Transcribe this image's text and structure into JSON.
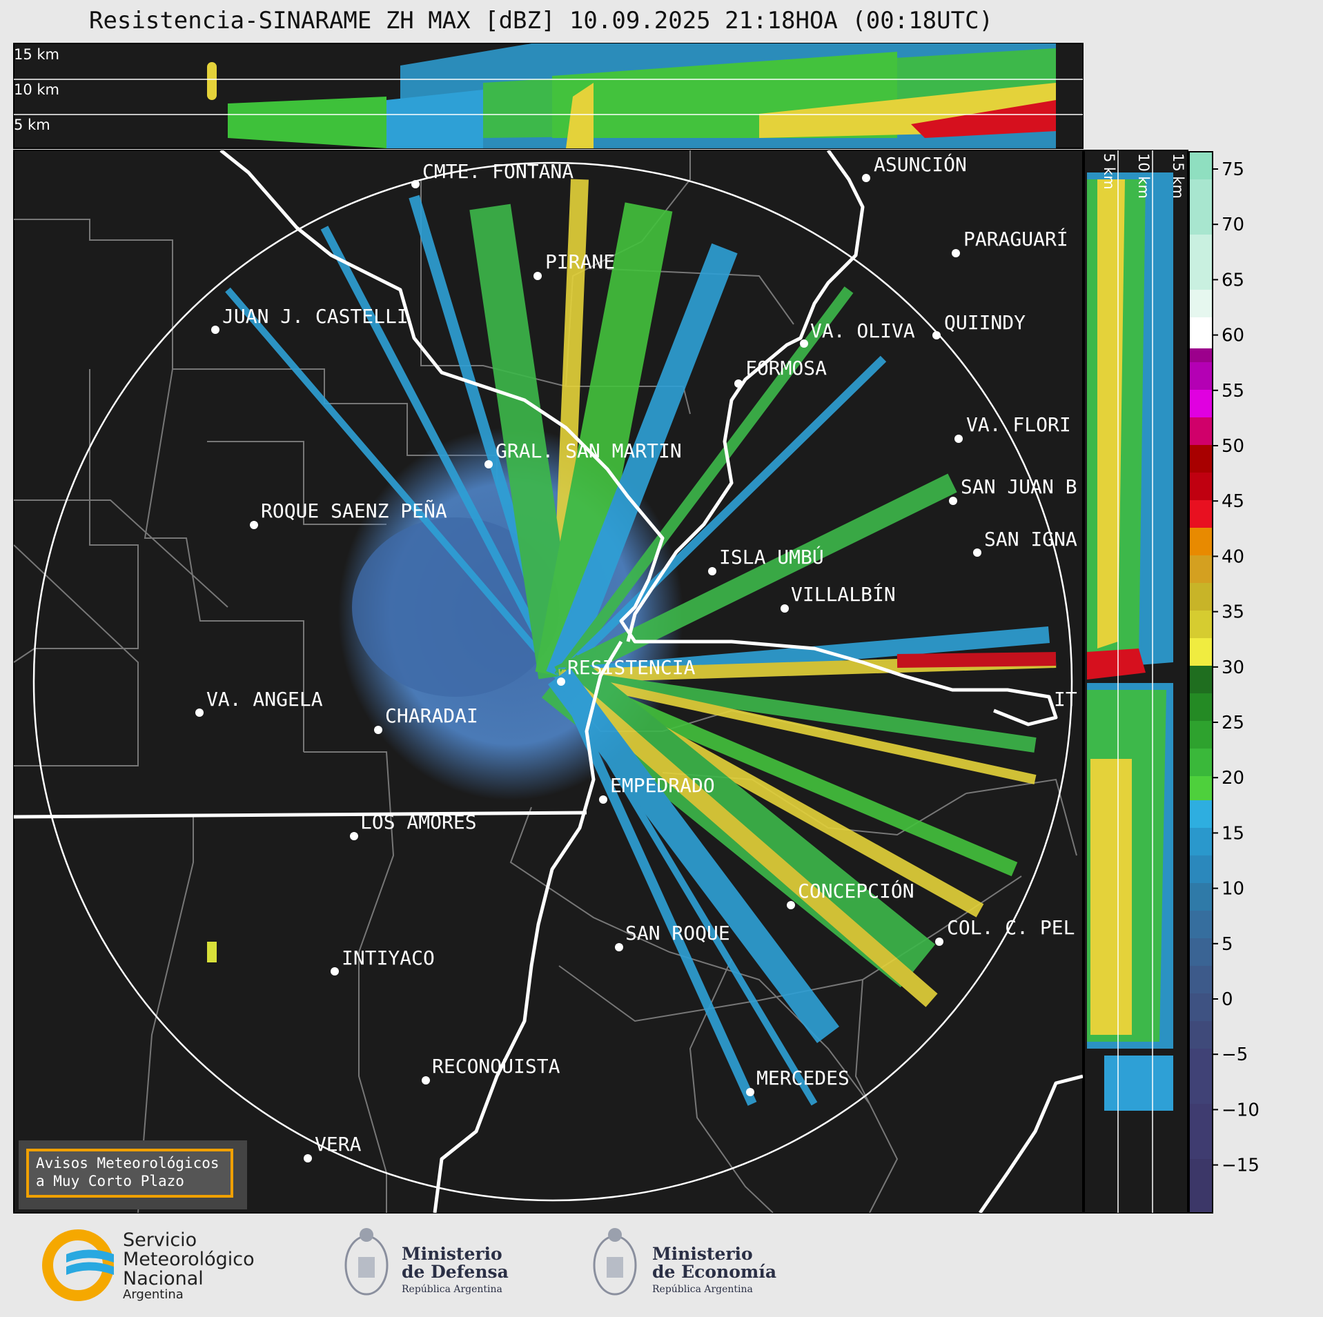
{
  "title": "Resistencia-SINARAME ZH MAX [dBZ] 10.09.2025 21:18HOA (00:18UTC)",
  "top_panel": {
    "altitude_labels": [
      "15 km",
      "10 km",
      "5 km"
    ]
  },
  "side_panel": {
    "altitude_labels": [
      "5 km",
      "10 km",
      "15 km"
    ]
  },
  "colorbar": {
    "unit": "dBZ",
    "ticks": [
      "75",
      "70",
      "65",
      "60",
      "55",
      "50",
      "45",
      "40",
      "35",
      "30",
      "25",
      "20",
      "15",
      "10",
      "5",
      "0",
      "−5",
      "−10",
      "−15"
    ]
  },
  "cities": [
    {
      "name": "CMTE. FONTANA"
    },
    {
      "name": "ASUNCIÓN"
    },
    {
      "name": "PARAGUARÍ"
    },
    {
      "name": "PIRANE"
    },
    {
      "name": "JUAN J. CASTELLI"
    },
    {
      "name": "VA. OLIVA"
    },
    {
      "name": "QUIINDY"
    },
    {
      "name": "FORMOSA"
    },
    {
      "name": "VA. FLORI"
    },
    {
      "name": "GRAL. SAN MARTIN"
    },
    {
      "name": "SAN JUAN B"
    },
    {
      "name": "ROQUE SAENZ PEÑA"
    },
    {
      "name": "SAN IGNA"
    },
    {
      "name": "ISLA UMBÚ"
    },
    {
      "name": "VILLALBÍN"
    },
    {
      "name": "RESISTENCIA"
    },
    {
      "name": "IT"
    },
    {
      "name": "VA. ANGELA"
    },
    {
      "name": "CHARADAI"
    },
    {
      "name": "EMPEDRADO"
    },
    {
      "name": "LOS AMORES"
    },
    {
      "name": "CONCEPCIÓN"
    },
    {
      "name": "SAN ROQUE"
    },
    {
      "name": "COL. C. PEL"
    },
    {
      "name": "INTIYACO"
    },
    {
      "name": "RECONQUISTA"
    },
    {
      "name": "MERCEDES"
    },
    {
      "name": "VERA"
    }
  ],
  "avisos": {
    "line1": "Avisos Meteorológicos",
    "line2": "a Muy Corto Plazo"
  },
  "logos": {
    "smn": {
      "line1": "Servicio",
      "line2": "Meteorológico",
      "line3": "Nacional",
      "line4": "Argentina"
    },
    "defensa": {
      "line1": "Ministerio",
      "line2": "de Defensa",
      "line3": "República Argentina"
    },
    "economia": {
      "line1": "Ministerio",
      "line2": "de Economía",
      "line3": "República Argentina"
    }
  }
}
